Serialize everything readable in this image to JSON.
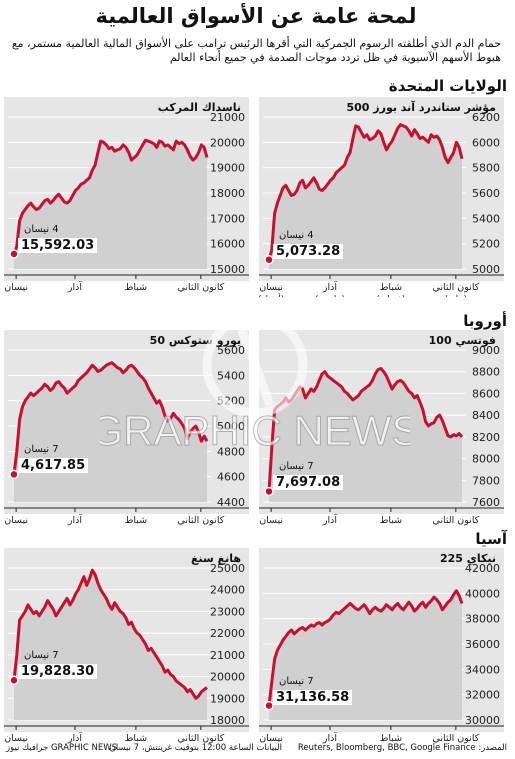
{
  "title": "لمحة عامة عن الأسواق العالمية",
  "subtitle": "حمام الدم الذي أطلقته الرسوم الجمركية التي أقرها الرئيس ترامب على الأسواق المالية العالمية مستمر، مع هبوط الأسهم الآسيوية في ظل تردد موجات الصدمة في جميع أنحاء العالم",
  "regions": {
    "us": "الولايات المتحدة",
    "europe": "أوروبا",
    "asia": "آسيا"
  },
  "footer": {
    "source": "المصدر: Reuters, Bloomberg, BBC, Google Finance",
    "note": "البيانات الساعة 12:00 بتوقيت غرينتش، 7 نيسان",
    "credit": "GRAPHIC NEWS جرافيك نيوز"
  },
  "colors": {
    "line": "#c8102e",
    "area": "#cfcfcf",
    "panel": "#e6e6e6",
    "grid": "#ffffff"
  },
  "watermark": "GRAPHIC NEWS",
  "chart_data": [
    {
      "id": "sp500",
      "type": "area",
      "title": "مؤشر ستاندرد آند بورز 500",
      "ylim": [
        5000,
        6200
      ],
      "yticks": [
        5000,
        5200,
        5400,
        5600,
        5800,
        6000,
        6200
      ],
      "xlabels": [
        {
          "text": "كانون الثاني",
          "sub": "(يناير)",
          "pos": 0.05
        },
        {
          "text": "شباط",
          "sub": "(فبراير)",
          "pos": 0.37
        },
        {
          "text": "آذار",
          "sub": "(مارس)",
          "pos": 0.67
        },
        {
          "text": "نيسان",
          "sub": "(أبريل)",
          "pos": 0.96
        }
      ],
      "values": [
        5870,
        5960,
        6000,
        5920,
        5880,
        5840,
        5880,
        5960,
        6020,
        6050,
        6040,
        6060,
        6000,
        6020,
        6040,
        6030,
        6070,
        6100,
        6050,
        6090,
        6120,
        6130,
        6140,
        6110,
        6060,
        6010,
        5980,
        5940,
        6000,
        6070,
        6090,
        6050,
        6030,
        6020,
        6060,
        6040,
        6080,
        6120,
        6130,
        6030,
        5920,
        5880,
        5820,
        5800,
        5780,
        5760,
        5720,
        5700,
        5670,
        5640,
        5620,
        5630,
        5680,
        5720,
        5690,
        5660,
        5640,
        5700,
        5680,
        5620,
        5590,
        5580,
        5620,
        5660,
        5640,
        5580,
        5520,
        5440,
        5150,
        5073.28
      ],
      "last_date": "4 نيسان",
      "last_label": "5,073.28"
    },
    {
      "id": "nasdaq",
      "type": "area",
      "title": "ناسداك المركب",
      "ylim": [
        15000,
        21000
      ],
      "yticks": [
        15000,
        16000,
        17000,
        18000,
        19000,
        20000,
        21000
      ],
      "xlabels": [
        {
          "text": "كانون الثاني",
          "pos": 0.05
        },
        {
          "text": "شباط",
          "pos": 0.37
        },
        {
          "text": "آذار",
          "pos": 0.67
        },
        {
          "text": "نيسان",
          "pos": 0.96
        }
      ],
      "values": [
        19400,
        19800,
        19900,
        19600,
        19400,
        19300,
        19450,
        19700,
        19900,
        20000,
        19950,
        20050,
        19700,
        19800,
        19900,
        19850,
        20000,
        20050,
        19800,
        19950,
        20000,
        20050,
        20080,
        19900,
        19700,
        19500,
        19400,
        19300,
        19600,
        19800,
        19900,
        19750,
        19700,
        19650,
        19800,
        19750,
        19900,
        20000,
        20050,
        19600,
        19100,
        18900,
        18600,
        18500,
        18400,
        18350,
        18200,
        18100,
        17900,
        17700,
        17600,
        17650,
        17800,
        17950,
        17850,
        17700,
        17600,
        17750,
        17700,
        17550,
        17400,
        17350,
        17450,
        17600,
        17500,
        17350,
        17200,
        16900,
        15900,
        15592.03
      ],
      "last_date": "4 نيسان",
      "last_label": "15,592.03"
    },
    {
      "id": "ftse",
      "type": "area",
      "title": "فوتسي 100",
      "ylim": [
        7600,
        9000
      ],
      "yticks": [
        7600,
        7800,
        8000,
        8200,
        8400,
        8600,
        8800,
        9000
      ],
      "xlabels": [
        {
          "text": "كانون الثاني",
          "pos": 0.05
        },
        {
          "text": "شباط",
          "pos": 0.37
        },
        {
          "text": "آذار",
          "pos": 0.67
        },
        {
          "text": "نيسان",
          "pos": 0.96
        }
      ],
      "values": [
        8200,
        8230,
        8210,
        8220,
        8200,
        8210,
        8280,
        8350,
        8400,
        8380,
        8330,
        8320,
        8300,
        8340,
        8450,
        8520,
        8580,
        8560,
        8600,
        8620,
        8660,
        8700,
        8720,
        8710,
        8680,
        8640,
        8700,
        8760,
        8800,
        8830,
        8820,
        8780,
        8720,
        8680,
        8660,
        8640,
        8620,
        8580,
        8560,
        8540,
        8570,
        8600,
        8620,
        8660,
        8680,
        8700,
        8720,
        8740,
        8760,
        8800,
        8780,
        8720,
        8660,
        8620,
        8640,
        8600,
        8560,
        8640,
        8660,
        8620,
        8580,
        8540,
        8520,
        8560,
        8520,
        8500,
        8480,
        8450,
        8100,
        7697.08
      ],
      "last_date": "7 نيسان",
      "last_label": "7,697.08"
    },
    {
      "id": "eurostoxx",
      "type": "area",
      "title": "يورو ستوكس 50",
      "ylim": [
        4400,
        5600
      ],
      "yticks": [
        4400,
        4600,
        4800,
        5000,
        5200,
        5400,
        5600
      ],
      "xlabels": [
        {
          "text": "كانون الثاني",
          "pos": 0.05
        },
        {
          "text": "شباط",
          "pos": 0.37
        },
        {
          "text": "آذار",
          "pos": 0.67
        },
        {
          "text": "نيسان",
          "pos": 0.96
        }
      ],
      "values": [
        4880,
        4920,
        4880,
        4950,
        5000,
        4980,
        4950,
        4900,
        4980,
        5020,
        5050,
        5070,
        5100,
        5060,
        5040,
        5080,
        5150,
        5200,
        5180,
        5220,
        5260,
        5300,
        5350,
        5380,
        5400,
        5430,
        5460,
        5480,
        5470,
        5440,
        5420,
        5450,
        5460,
        5480,
        5500,
        5490,
        5480,
        5460,
        5440,
        5430,
        5460,
        5480,
        5450,
        5420,
        5400,
        5380,
        5360,
        5320,
        5300,
        5280,
        5260,
        5300,
        5320,
        5350,
        5340,
        5300,
        5280,
        5310,
        5330,
        5300,
        5280,
        5260,
        5240,
        5260,
        5230,
        5200,
        5150,
        5050,
        4800,
        4617.85
      ],
      "last_date": "7 نيسان",
      "last_label": "4,617.85"
    },
    {
      "id": "nikkei",
      "type": "area",
      "title": "نيكاي 225",
      "ylim": [
        30000,
        42000
      ],
      "yticks": [
        30000,
        32000,
        34000,
        36000,
        38000,
        40000,
        42000
      ],
      "xlabels": [
        {
          "text": "كانون الثاني",
          "pos": 0.05
        },
        {
          "text": "شباط",
          "pos": 0.37
        },
        {
          "text": "آذار",
          "pos": 0.67
        },
        {
          "text": "نيسان",
          "pos": 0.96
        }
      ],
      "values": [
        39200,
        39800,
        40200,
        39900,
        39500,
        39300,
        39000,
        38700,
        39200,
        39500,
        39700,
        39400,
        39200,
        38900,
        39300,
        39100,
        38800,
        38600,
        39000,
        39300,
        39000,
        38700,
        38900,
        39200,
        39000,
        38700,
        38900,
        39100,
        38800,
        38600,
        38700,
        38900,
        38700,
        38400,
        38800,
        39100,
        38900,
        38700,
        38800,
        39000,
        39200,
        39000,
        38800,
        38600,
        38400,
        38500,
        38300,
        38000,
        37800,
        37700,
        37500,
        37700,
        37600,
        37400,
        37500,
        37300,
        37100,
        37300,
        37200,
        37000,
        36800,
        37100,
        36900,
        36600,
        36300,
        35900,
        35500,
        34800,
        33000,
        31136.58
      ],
      "last_date": "7 نيسان",
      "last_label": "31,136.58"
    },
    {
      "id": "hangseng",
      "type": "area",
      "title": "هانغ سنغ",
      "ylim": [
        18000,
        25000
      ],
      "yticks": [
        18000,
        19000,
        20000,
        21000,
        22000,
        23000,
        24000,
        25000
      ],
      "xlabels": [
        {
          "text": "كانون الثاني",
          "pos": 0.05
        },
        {
          "text": "شباط",
          "pos": 0.37
        },
        {
          "text": "آذار",
          "pos": 0.67
        },
        {
          "text": "نيسان",
          "pos": 0.96
        }
      ],
      "values": [
        19500,
        19400,
        19300,
        19100,
        19000,
        19200,
        19400,
        19300,
        19500,
        19600,
        19700,
        19800,
        20000,
        20100,
        20300,
        20200,
        20500,
        20700,
        20900,
        21100,
        21300,
        21200,
        21500,
        21700,
        21900,
        22000,
        22200,
        22500,
        22400,
        22700,
        22900,
        23000,
        23200,
        23400,
        23100,
        23300,
        23600,
        23800,
        24000,
        24300,
        24700,
        24900,
        24500,
        24200,
        24600,
        24300,
        24000,
        23800,
        23500,
        23300,
        23600,
        23400,
        23200,
        23000,
        22800,
        23100,
        23300,
        23500,
        23200,
        23000,
        22800,
        23000,
        22900,
        23100,
        23300,
        23000,
        22800,
        22600,
        21000,
        19828.3
      ],
      "last_date": "7 نيسان",
      "last_label": "19,828.30"
    }
  ]
}
